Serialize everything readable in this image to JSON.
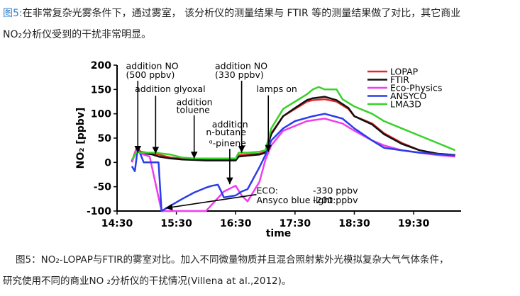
{
  "intro": {
    "label": "图5:",
    "line1": "在非常复杂光雾条件下，通过雾室， 该分析仪的测量结果与 FTIR 等的测量结果做了对比，其它商业",
    "line2": "NO₂分析仪受到的干扰非常明显。"
  },
  "caption": {
    "line1": "图5：NO₂-LOPAP与FTIR的雾室对比。加入不同微量物质并且混合照射紫外光模拟复杂大气气体条件，",
    "line2": "研究使用不同的商业NO ₂分析仪的干扰情况(Villena at al.,2012)。"
  },
  "colors": {
    "LOPAP": "#e8272a",
    "FTIR": "#111111",
    "Eco-Physics": "#f03cf0",
    "ANSYCO": "#2a3de8",
    "LMA3D": "#3ad12a"
  },
  "chart_data": {
    "type": "line",
    "xlabel": "time",
    "ylabel": "NO₂ [ppbv]",
    "xlim": [
      14.5,
      20.3
    ],
    "ylim": [
      -100,
      200
    ],
    "xticks": [
      "14:30",
      "15:30",
      "16:30",
      "17:30",
      "18:30",
      "19:30"
    ],
    "xtick_values": [
      14.5,
      15.5,
      16.5,
      17.5,
      18.5,
      19.5
    ],
    "yticks": [
      "200",
      "150",
      "100",
      "50",
      "0",
      "-50",
      "-100"
    ],
    "ytick_values": [
      200,
      150,
      100,
      50,
      0,
      -50,
      -100
    ],
    "grid": false,
    "legend_position": "top-right",
    "series": [
      {
        "name": "LOPAP",
        "x": [
          14.75,
          14.83,
          14.9,
          15.1,
          15.2,
          15.4,
          15.6,
          15.8,
          16.0,
          16.2,
          16.4,
          16.5,
          16.55,
          16.7,
          16.9,
          17.0,
          17.1,
          17.3,
          17.5,
          17.7,
          17.8,
          18.0,
          18.2,
          18.4,
          18.5,
          18.8,
          19.0,
          19.3,
          19.6,
          19.9,
          20.2
        ],
        "y": [
          2,
          30,
          22,
          18,
          16,
          10,
          8,
          6,
          5,
          5,
          5,
          5,
          15,
          16,
          18,
          22,
          60,
          95,
          110,
          125,
          128,
          130,
          125,
          110,
          95,
          80,
          60,
          40,
          25,
          18,
          15
        ]
      },
      {
        "name": "FTIR",
        "x": [
          14.75,
          14.83,
          14.9,
          15.1,
          15.2,
          15.4,
          15.6,
          15.8,
          16.0,
          16.2,
          16.4,
          16.5,
          16.55,
          16.7,
          16.9,
          17.0,
          17.1,
          17.3,
          17.5,
          17.7,
          17.8,
          18.0,
          18.2,
          18.4,
          18.5,
          18.8,
          19.0,
          19.3,
          19.6,
          19.9,
          20.2
        ],
        "y": [
          2,
          25,
          20,
          16,
          12,
          8,
          6,
          5,
          4,
          4,
          4,
          4,
          12,
          14,
          16,
          20,
          58,
          95,
          112,
          128,
          132,
          135,
          128,
          112,
          95,
          78,
          58,
          38,
          25,
          18,
          15
        ]
      },
      {
        "name": "Eco-Physics",
        "x": [
          14.75,
          14.83,
          14.9,
          15.05,
          15.25,
          16.0,
          16.3,
          16.5,
          16.6,
          16.7,
          16.9,
          17.0,
          17.1,
          17.3,
          17.5,
          17.7,
          18.0,
          18.3,
          18.5,
          18.8,
          19.0,
          19.3,
          19.6,
          19.9,
          20.2
        ],
        "y": [
          0,
          28,
          18,
          12,
          -100,
          -100,
          -60,
          -48,
          -68,
          -80,
          -40,
          5,
          35,
          65,
          75,
          85,
          90,
          80,
          65,
          45,
          35,
          25,
          20,
          15,
          12
        ]
      },
      {
        "name": "ANSYCO",
        "x": [
          14.75,
          14.8,
          14.85,
          14.95,
          15.2,
          15.25,
          15.6,
          15.8,
          16.0,
          16.1,
          16.2,
          16.25,
          16.3,
          16.5,
          16.6,
          16.7,
          16.9,
          17.0,
          17.1,
          17.3,
          17.5,
          17.8,
          18.0,
          18.3,
          18.5,
          18.8,
          19.0,
          19.3,
          19.6,
          19.9,
          20.2
        ],
        "y": [
          -8,
          -18,
          30,
          0,
          0,
          -100,
          -75,
          -62,
          -52,
          -48,
          -46,
          -58,
          -72,
          -68,
          -60,
          -55,
          -10,
          15,
          45,
          70,
          85,
          95,
          100,
          90,
          70,
          45,
          30,
          25,
          20,
          17,
          14
        ]
      },
      {
        "name": "LMA3D",
        "x": [
          14.75,
          14.83,
          14.9,
          15.1,
          15.2,
          15.4,
          15.6,
          15.8,
          16.0,
          16.2,
          16.4,
          16.5,
          16.55,
          16.7,
          16.9,
          17.0,
          17.1,
          17.3,
          17.5,
          17.7,
          17.8,
          17.9,
          18.0,
          18.2,
          18.3,
          18.5,
          18.8,
          19.0,
          19.3,
          19.6,
          19.9,
          20.2
        ],
        "y": [
          5,
          22,
          20,
          20,
          19,
          16,
          10,
          8,
          8,
          8,
          8,
          8,
          20,
          20,
          22,
          25,
          70,
          110,
          125,
          140,
          150,
          155,
          150,
          150,
          130,
          115,
          100,
          85,
          70,
          55,
          40,
          25
        ]
      }
    ],
    "annotations": [
      {
        "text": "addition NO",
        "x": 14.65,
        "y": 192
      },
      {
        "text": "(500 ppbv)",
        "x": 14.65,
        "y": 174
      },
      {
        "text": "addition glyoxal",
        "x": 14.8,
        "y": 145
      },
      {
        "text": "addition",
        "x": 15.5,
        "y": 118
      },
      {
        "text": "toluene",
        "x": 15.5,
        "y": 102
      },
      {
        "text": "addition",
        "x": 16.1,
        "y": 72
      },
      {
        "text": "n-butane",
        "x": 16.0,
        "y": 56
      },
      {
        "text": "ᵅ-pinene",
        "x": 16.05,
        "y": 33
      },
      {
        "text": "addition NO",
        "x": 16.15,
        "y": 192
      },
      {
        "text": "(330 ppbv)",
        "x": 16.15,
        "y": 174
      },
      {
        "text": "lamps on",
        "x": 16.85,
        "y": 145
      },
      {
        "text": "ECO:",
        "x": 16.85,
        "y": -64
      },
      {
        "text": "-330 ppbv",
        "x": 17.8,
        "y": -64
      },
      {
        "text": "Ansyco blue light:",
        "x": 16.85,
        "y": -84
      },
      {
        "text": "-200 ppbv",
        "x": 17.8,
        "y": -84
      }
    ],
    "arrows": [
      {
        "from": [
          14.85,
          168
        ],
        "to": [
          14.85,
          20
        ]
      },
      {
        "from": [
          15.15,
          137
        ],
        "to": [
          15.15,
          18
        ]
      },
      {
        "from": [
          15.8,
          97
        ],
        "to": [
          15.8,
          8
        ]
      },
      {
        "from": [
          16.4,
          28
        ],
        "to": [
          16.4,
          -45
        ]
      },
      {
        "from": [
          16.6,
          168
        ],
        "to": [
          16.6,
          20
        ]
      },
      {
        "from": [
          17.05,
          138
        ],
        "to": [
          17.05,
          22
        ]
      },
      {
        "from": [
          16.85,
          -66
        ],
        "to": [
          15.32,
          -94
        ]
      }
    ]
  }
}
